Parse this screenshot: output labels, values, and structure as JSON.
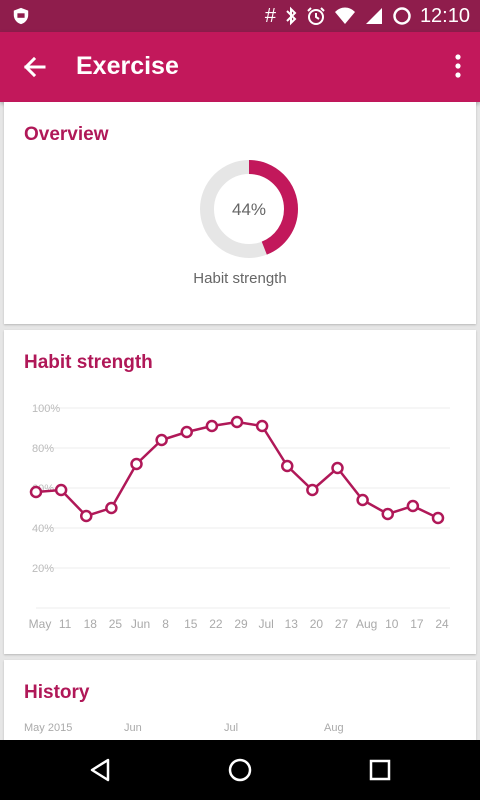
{
  "status_bar": {
    "time": "12:10",
    "icons": [
      "shield-icon",
      "hash-icon",
      "bluetooth-icon",
      "alarm-icon",
      "wifi-icon",
      "signal-icon",
      "battery-icon"
    ]
  },
  "app_bar": {
    "title": "Exercise",
    "back_icon": "arrow-left-icon",
    "menu_icon": "more-vert-icon"
  },
  "overview": {
    "title": "Overview",
    "percent_label": "44%",
    "percent": 44,
    "caption": "Habit strength",
    "accent": "#c2185b"
  },
  "strength_card": {
    "title": "Habit strength"
  },
  "chart_data": {
    "type": "line",
    "y_ticks": [
      "100%",
      "80%",
      "60%",
      "40%",
      "20%"
    ],
    "x_labels": [
      "May",
      "11",
      "18",
      "25",
      "Jun",
      "8",
      "15",
      "22",
      "29",
      "Jul",
      "13",
      "20",
      "27",
      "Aug",
      "10",
      "17",
      "24"
    ],
    "values": [
      58,
      59,
      46,
      50,
      72,
      84,
      88,
      91,
      93,
      91,
      71,
      59,
      70,
      54,
      47,
      51,
      45
    ],
    "ylim": [
      0,
      100
    ],
    "color": "#b01858",
    "grid": true
  },
  "history": {
    "title": "History",
    "months": [
      "May 2015",
      "Jun",
      "Jul",
      "Aug"
    ]
  },
  "nav_bar": {
    "icons": [
      "back-triangle-icon",
      "home-circle-icon",
      "recents-square-icon"
    ]
  }
}
